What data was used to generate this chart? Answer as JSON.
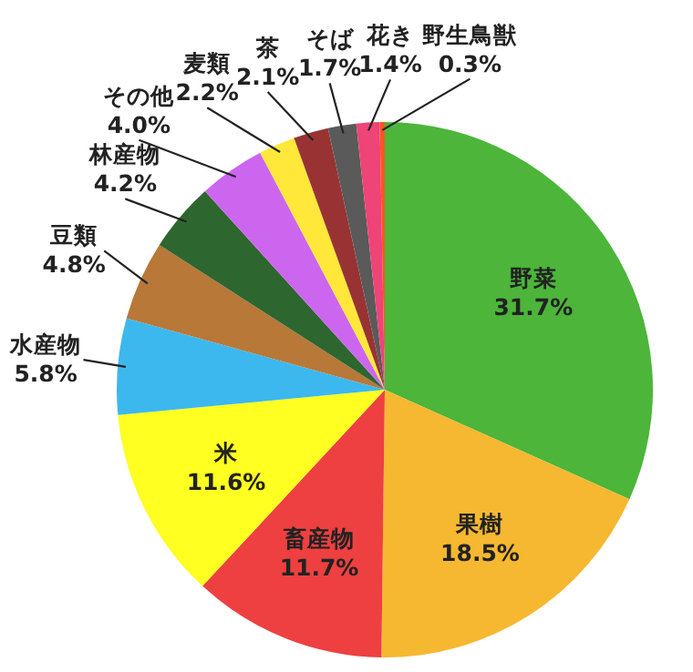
{
  "chart_data": {
    "type": "pie",
    "categories": [
      "野菜",
      "果樹",
      "畜産物",
      "米",
      "水産物",
      "豆類",
      "林産物",
      "その他",
      "麦類",
      "茶",
      "そば",
      "花き",
      "野生鳥獣"
    ],
    "values": [
      31.7,
      18.5,
      11.7,
      11.6,
      5.8,
      4.8,
      4.2,
      4.0,
      2.2,
      2.1,
      1.7,
      1.4,
      0.3
    ],
    "value_labels": [
      "31.7%",
      "18.5%",
      "11.7%",
      "11.6%",
      "5.8%",
      "4.8%",
      "4.2%",
      "4.0%",
      "2.2%",
      "2.1%",
      "1.7%",
      "1.4%",
      "0.3%"
    ],
    "colors": [
      "#4cb53a",
      "#f6b830",
      "#ee4040",
      "#ffff22",
      "#3cb8ee",
      "#b87838",
      "#2e6630",
      "#cc66ee",
      "#ffe83a",
      "#993333",
      "#5a5a5a",
      "#ee4477",
      "#ff5522"
    ]
  }
}
